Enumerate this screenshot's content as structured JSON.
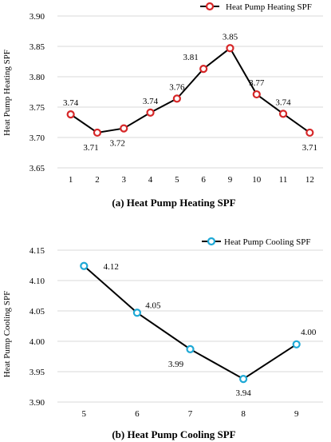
{
  "colors": {
    "heating_marker": "#d62728",
    "cooling_marker": "#1fa9d6",
    "line": "#000000",
    "grid": "#d9d9d9"
  },
  "chart_data": [
    {
      "type": "line",
      "caption": "(a) Heat Pump Heating SPF",
      "ylabel": "Heat Pump Heating SPF",
      "xlabel": "",
      "categories": [
        "1",
        "2",
        "3",
        "4",
        "5",
        "6",
        "9",
        "10",
        "11",
        "12"
      ],
      "series": [
        {
          "name": "Heat Pump Heating SPF",
          "values": [
            3.738,
            3.708,
            3.715,
            3.741,
            3.764,
            3.813,
            3.847,
            3.771,
            3.739,
            3.708
          ],
          "labels": [
            "3.74",
            "3.71",
            "3.72",
            "3.74",
            "3.76",
            "3.81",
            "3.85",
            "3.77",
            "3.74",
            "3.71"
          ]
        }
      ],
      "ylim": [
        3.65,
        3.9
      ],
      "yticks": [
        "3.65",
        "3.70",
        "3.75",
        "3.80",
        "3.85",
        "3.90"
      ],
      "grid": "horizontal",
      "legend": "top-right"
    },
    {
      "type": "line",
      "caption": "(b) Heat Pump Cooling SPF",
      "ylabel": "Heat Pump Cooling SPF",
      "xlabel": "",
      "categories": [
        "5",
        "6",
        "7",
        "8",
        "9"
      ],
      "series": [
        {
          "name": "Heat Pump Cooling SPF",
          "values": [
            4.124,
            4.047,
            3.987,
            3.938,
            3.995
          ],
          "labels": [
            "4.12",
            "4.05",
            "3.99",
            "3.94",
            "4.00"
          ]
        }
      ],
      "ylim": [
        3.9,
        4.15
      ],
      "yticks": [
        "3.90",
        "3.95",
        "4.00",
        "4.05",
        "4.10",
        "4.15"
      ],
      "grid": "horizontal",
      "legend": "top-right"
    }
  ]
}
